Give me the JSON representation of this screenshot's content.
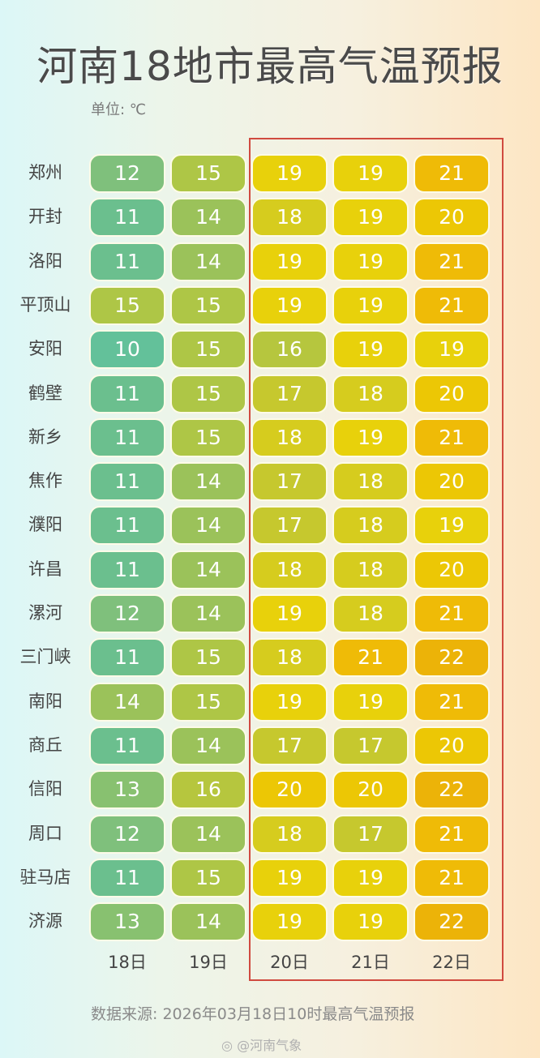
{
  "title": "河南18地市最高气温预报",
  "unit": "单位: ℃",
  "dates": [
    "18日",
    "19日",
    "20日",
    "21日",
    "22日"
  ],
  "source": "数据来源: 2026年03月18日10时最高气温预报",
  "watermark": "@河南气象",
  "colors": {
    "10": "#63c19a",
    "11": "#6bbf8e",
    "12": "#7fc07c",
    "13": "#88c170",
    "14": "#9bc25a",
    "15": "#aec646",
    "16": "#b6c63e",
    "17": "#c6c82e",
    "18": "#d6cc1e",
    "19": "#e8d10b",
    "20": "#ecc705",
    "21": "#efbb07",
    "22": "#ecb308",
    "highlight_border": "#d04a3f"
  },
  "rows": [
    {
      "city": "郑州",
      "temps": [
        "12",
        "15",
        "19",
        "19",
        "21"
      ]
    },
    {
      "city": "开封",
      "temps": [
        "11",
        "14",
        "18",
        "19",
        "20"
      ]
    },
    {
      "city": "洛阳",
      "temps": [
        "11",
        "14",
        "19",
        "19",
        "21"
      ]
    },
    {
      "city": "平顶山",
      "temps": [
        "15",
        "15",
        "19",
        "19",
        "21"
      ]
    },
    {
      "city": "安阳",
      "temps": [
        "10",
        "15",
        "16",
        "19",
        "19"
      ]
    },
    {
      "city": "鹤壁",
      "temps": [
        "11",
        "15",
        "17",
        "18",
        "20"
      ]
    },
    {
      "city": "新乡",
      "temps": [
        "11",
        "15",
        "18",
        "19",
        "21"
      ]
    },
    {
      "city": "焦作",
      "temps": [
        "11",
        "14",
        "17",
        "18",
        "20"
      ]
    },
    {
      "city": "濮阳",
      "temps": [
        "11",
        "14",
        "17",
        "18",
        "19"
      ]
    },
    {
      "city": "许昌",
      "temps": [
        "11",
        "14",
        "18",
        "18",
        "20"
      ]
    },
    {
      "city": "漯河",
      "temps": [
        "12",
        "14",
        "19",
        "18",
        "21"
      ]
    },
    {
      "city": "三门峡",
      "temps": [
        "11",
        "15",
        "18",
        "21",
        "22"
      ]
    },
    {
      "city": "南阳",
      "temps": [
        "14",
        "15",
        "19",
        "19",
        "21"
      ]
    },
    {
      "city": "商丘",
      "temps": [
        "11",
        "14",
        "17",
        "17",
        "20"
      ]
    },
    {
      "city": "信阳",
      "temps": [
        "13",
        "16",
        "20",
        "20",
        "22"
      ]
    },
    {
      "city": "周口",
      "temps": [
        "12",
        "14",
        "18",
        "17",
        "21"
      ]
    },
    {
      "city": "驻马店",
      "temps": [
        "11",
        "15",
        "19",
        "19",
        "21"
      ]
    },
    {
      "city": "济源",
      "temps": [
        "13",
        "14",
        "19",
        "19",
        "22"
      ]
    }
  ],
  "chart_data": {
    "type": "heatmap",
    "title": "河南18地市最高气温预报",
    "unit": "℃",
    "x": [
      "18日",
      "19日",
      "20日",
      "21日",
      "22日"
    ],
    "y": [
      "郑州",
      "开封",
      "洛阳",
      "平顶山",
      "安阳",
      "鹤壁",
      "新乡",
      "焦作",
      "濮阳",
      "许昌",
      "漯河",
      "三门峡",
      "南阳",
      "商丘",
      "信阳",
      "周口",
      "驻马店",
      "济源"
    ],
    "values": [
      [
        12,
        15,
        19,
        19,
        21
      ],
      [
        11,
        14,
        18,
        19,
        20
      ],
      [
        11,
        14,
        19,
        19,
        21
      ],
      [
        15,
        15,
        19,
        19,
        21
      ],
      [
        10,
        15,
        16,
        19,
        19
      ],
      [
        11,
        15,
        17,
        18,
        20
      ],
      [
        11,
        15,
        18,
        19,
        21
      ],
      [
        11,
        14,
        17,
        18,
        20
      ],
      [
        11,
        14,
        17,
        18,
        19
      ],
      [
        11,
        14,
        18,
        18,
        20
      ],
      [
        12,
        14,
        19,
        18,
        21
      ],
      [
        11,
        15,
        18,
        21,
        22
      ],
      [
        14,
        15,
        19,
        19,
        21
      ],
      [
        11,
        14,
        17,
        17,
        20
      ],
      [
        13,
        16,
        20,
        20,
        22
      ],
      [
        12,
        14,
        18,
        17,
        21
      ],
      [
        11,
        15,
        19,
        19,
        21
      ],
      [
        13,
        14,
        19,
        19,
        22
      ]
    ],
    "highlighted_columns": [
      "20日",
      "21日",
      "22日"
    ],
    "source": "数据来源: 2026年03月18日10时最高气温预报"
  }
}
